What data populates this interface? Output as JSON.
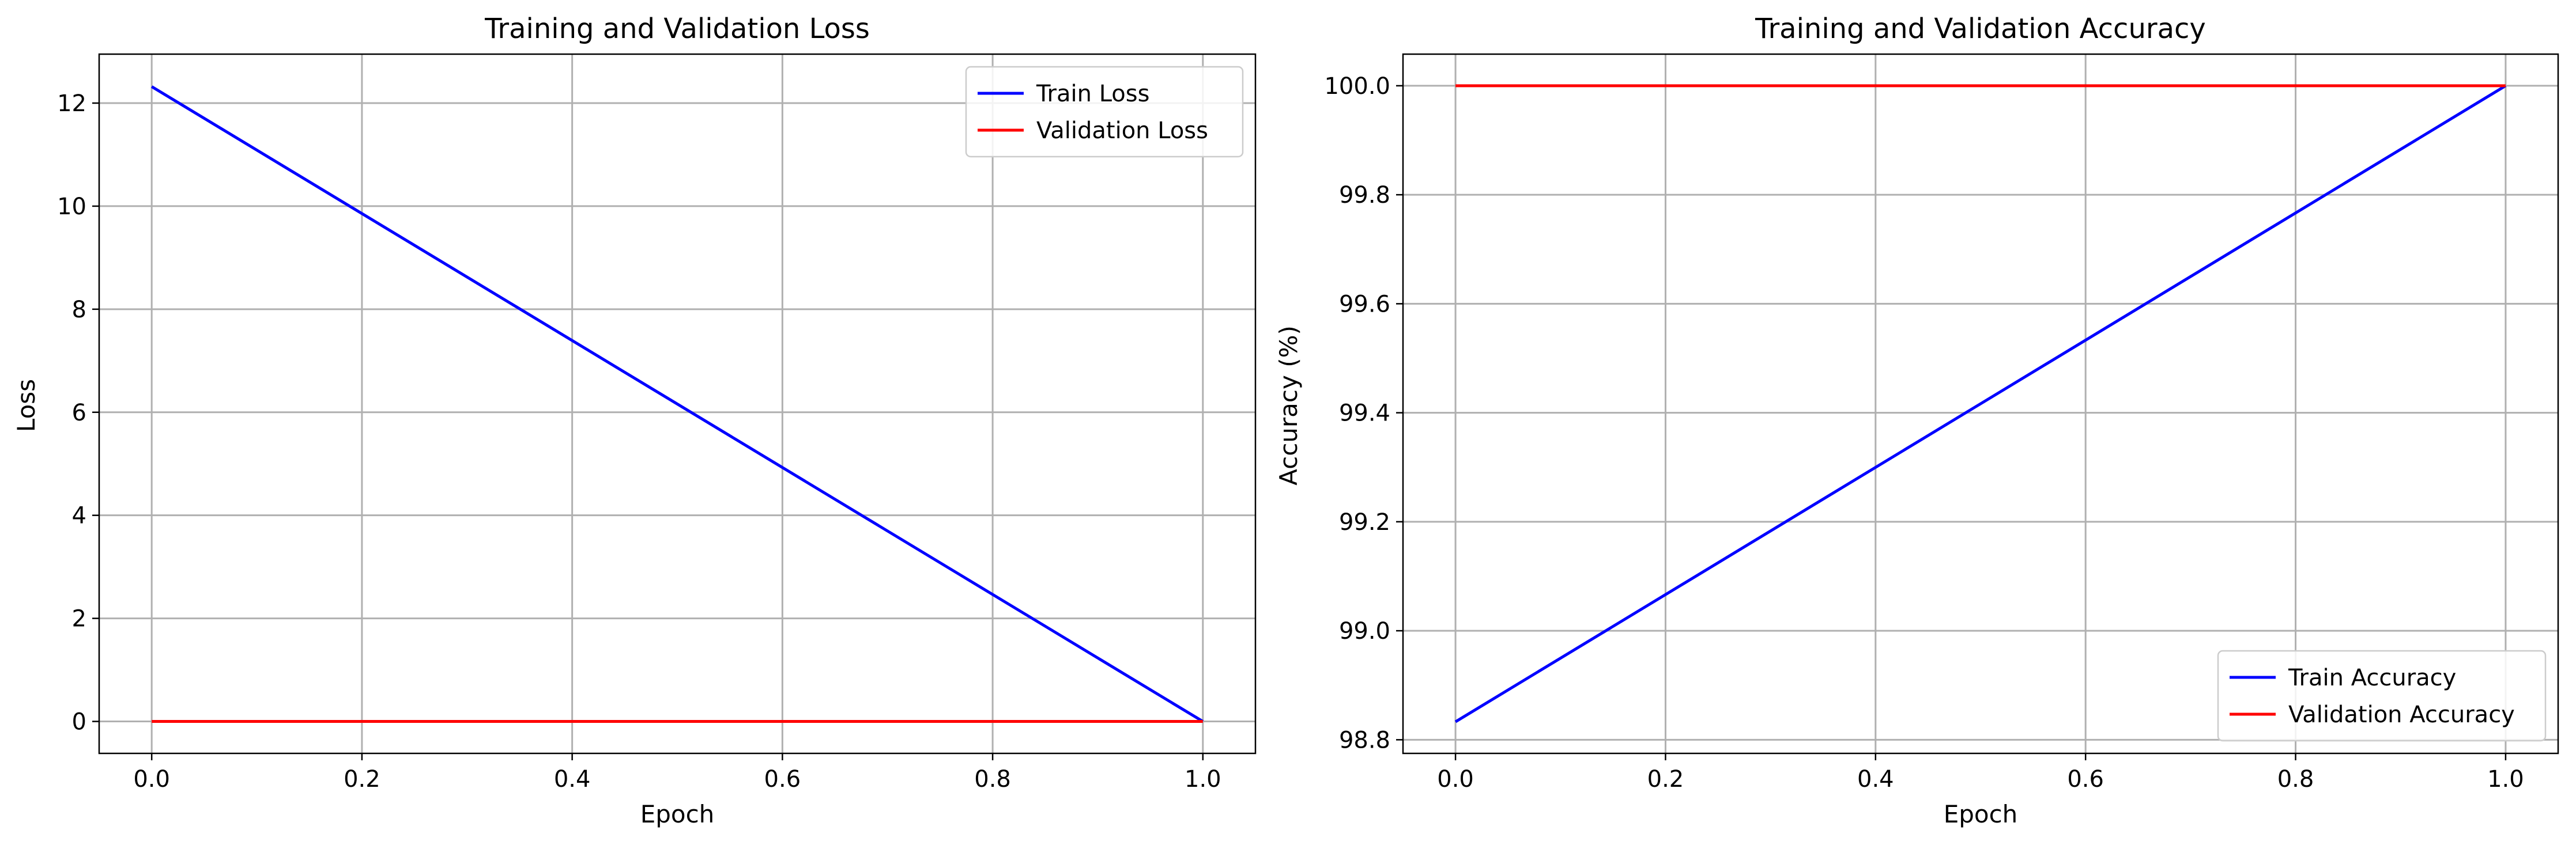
{
  "chart_data": [
    {
      "type": "line",
      "title": "Training and Validation Loss",
      "xlabel": "Epoch",
      "ylabel": "Loss",
      "xlim": [
        -0.05,
        1.05
      ],
      "ylim": [
        -0.62,
        12.95
      ],
      "xticks": [
        0.0,
        0.2,
        0.4,
        0.6,
        0.8,
        1.0
      ],
      "xtick_labels": [
        "0.0",
        "0.2",
        "0.4",
        "0.6",
        "0.8",
        "1.0"
      ],
      "yticks": [
        0,
        2,
        4,
        6,
        8,
        10,
        12
      ],
      "ytick_labels": [
        "0",
        "2",
        "4",
        "6",
        "8",
        "10",
        "12"
      ],
      "grid": true,
      "legend_position": "top-right",
      "series": [
        {
          "name": "Train Loss",
          "color": "#0000ff",
          "x": [
            0.0,
            1.0
          ],
          "y": [
            12.32,
            0.0
          ]
        },
        {
          "name": "Validation Loss",
          "color": "#ff0000",
          "x": [
            0.0,
            1.0
          ],
          "y": [
            0.0,
            0.0
          ]
        }
      ]
    },
    {
      "type": "line",
      "title": "Training and Validation Accuracy",
      "xlabel": "Epoch",
      "ylabel": "Accuracy (%)",
      "xlim": [
        -0.05,
        1.05
      ],
      "ylim": [
        98.775,
        100.058
      ],
      "xticks": [
        0.0,
        0.2,
        0.4,
        0.6,
        0.8,
        1.0
      ],
      "xtick_labels": [
        "0.0",
        "0.2",
        "0.4",
        "0.6",
        "0.8",
        "1.0"
      ],
      "yticks": [
        98.8,
        99.0,
        99.2,
        99.4,
        99.6,
        99.8,
        100.0
      ],
      "ytick_labels": [
        "98.8",
        "99.0",
        "99.2",
        "99.4",
        "99.6",
        "99.8",
        "100.0"
      ],
      "grid": true,
      "legend_position": "bottom-right",
      "series": [
        {
          "name": "Train Accuracy",
          "color": "#0000ff",
          "x": [
            0.0,
            1.0
          ],
          "y": [
            98.833,
            100.0
          ]
        },
        {
          "name": "Validation Accuracy",
          "color": "#ff0000",
          "x": [
            0.0,
            1.0
          ],
          "y": [
            100.0,
            100.0
          ]
        }
      ]
    }
  ]
}
